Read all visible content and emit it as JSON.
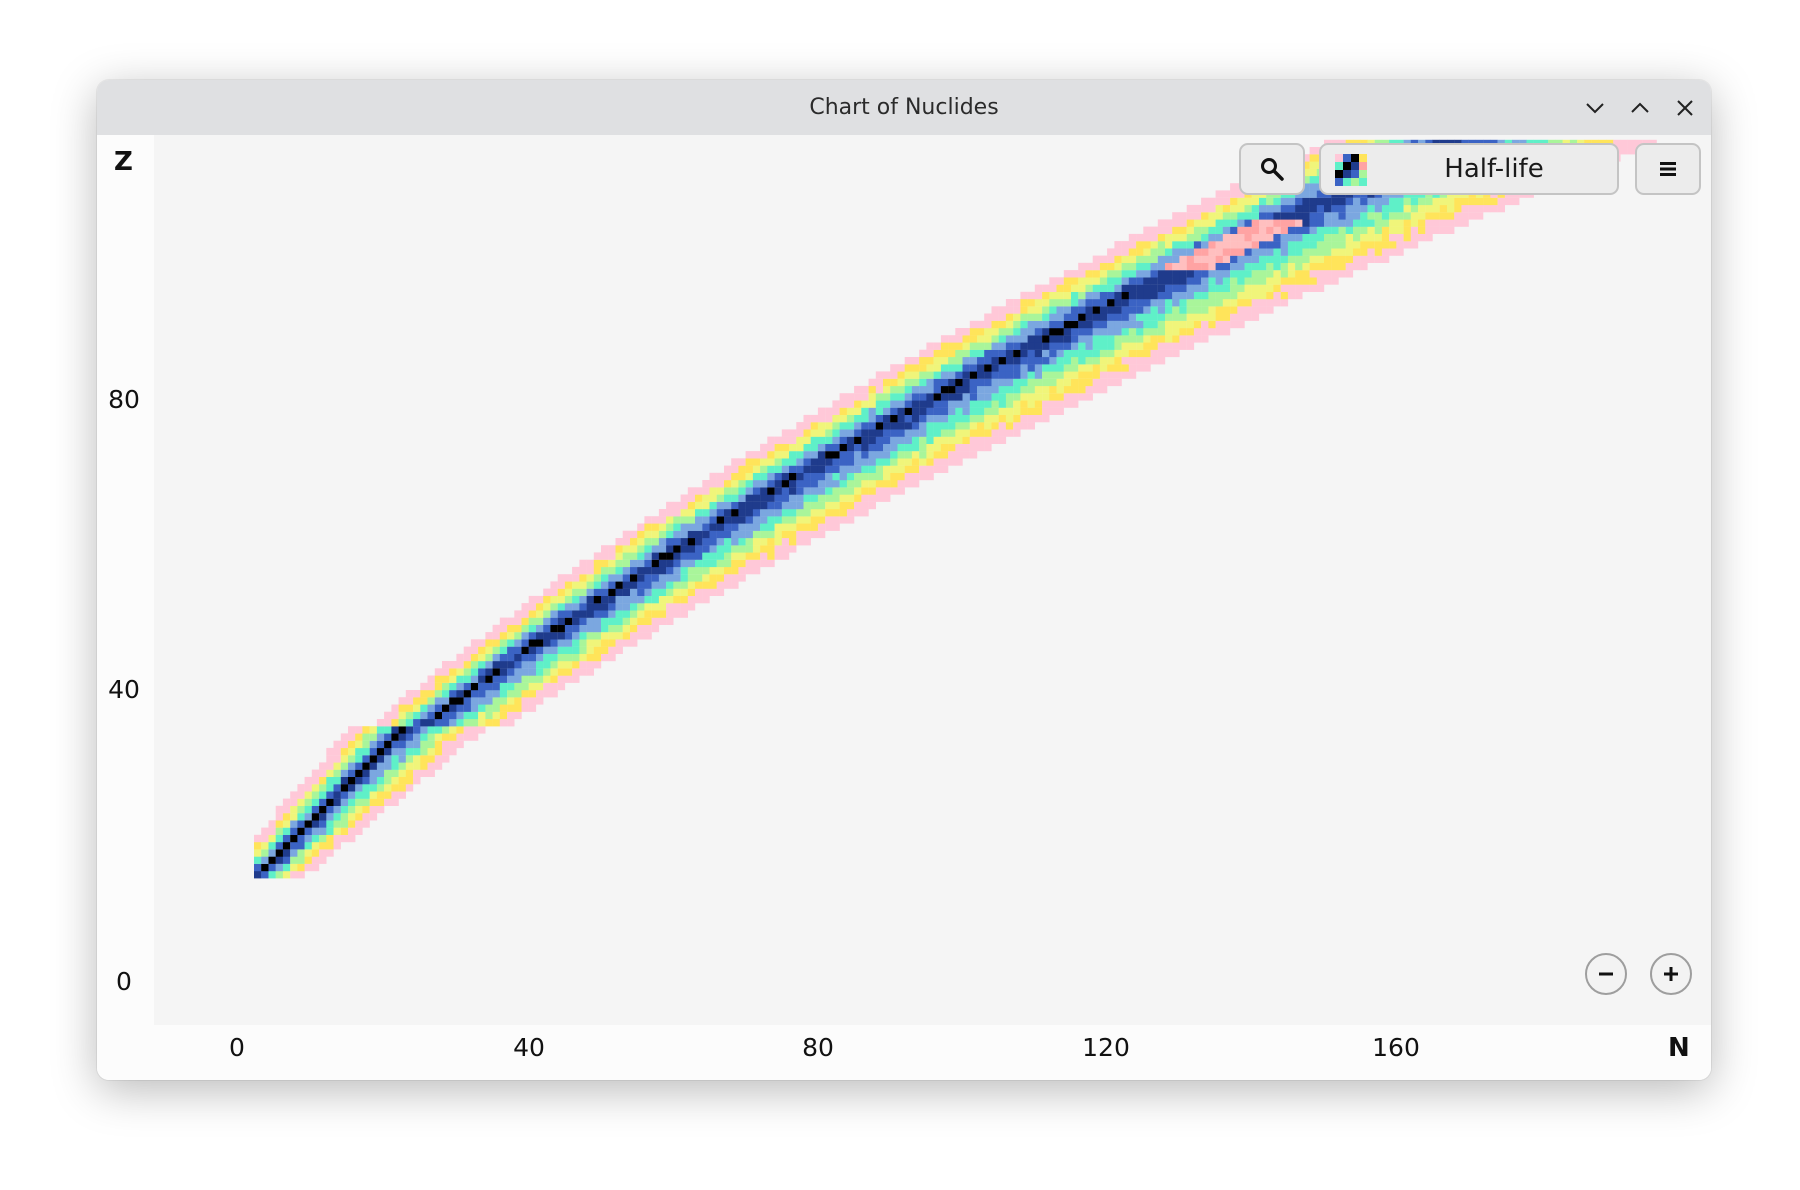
{
  "window": {
    "title": "Chart of Nuclides"
  },
  "toolbar": {
    "search_icon": "magnifier-icon",
    "mode_label": "Half-life",
    "mode_icon": "half-life-swatch-icon",
    "menu_icon": "hamburger-menu-icon"
  },
  "zoom": {
    "out_icon": "minus-icon",
    "in_icon": "plus-icon"
  },
  "chart_data": {
    "type": "heatmap",
    "xlabel": "N",
    "ylabel": "Z",
    "xlim": [
      -7,
      209
    ],
    "ylim": [
      -2,
      118
    ],
    "x_ticks": [
      "0",
      "40",
      "80",
      "120",
      "160"
    ],
    "y_ticks": [
      "0",
      "40",
      "80"
    ],
    "grid": false,
    "legend": "none",
    "colors": {
      "stable": "#000000",
      "long": "#1f3b8c",
      "medium_long": "#3b63c4",
      "medium": "#7ba7e0",
      "short": "#5ff0c8",
      "shorter": "#a9f59a",
      "very_short": "#f0f57a",
      "shortest": "#ffe45a",
      "unknown": "#ffc8d8",
      "alpha_region": "#ffa3a3"
    }
  }
}
